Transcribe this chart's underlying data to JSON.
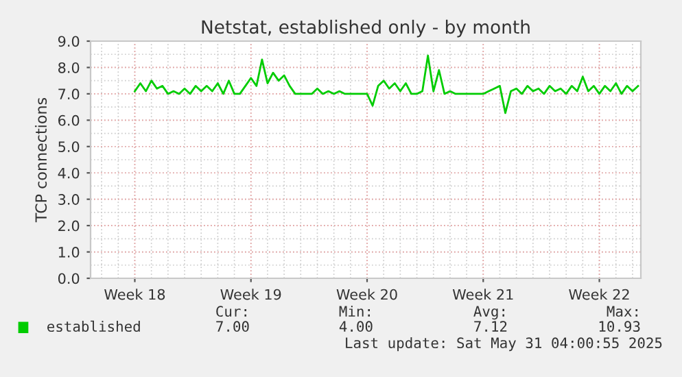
{
  "chart_data": {
    "type": "line",
    "title": "Netstat, established only - by month",
    "ylabel": "TCP connections",
    "categories": [
      null,
      null,
      null,
      null,
      null,
      null,
      null,
      null,
      "Week 18",
      null,
      null,
      null,
      null,
      null,
      null,
      null,
      null,
      null,
      null,
      null,
      null,
      null,
      null,
      null,
      null,
      null,
      null,
      null,
      null,
      "Week 19",
      null,
      null,
      null,
      null,
      null,
      null,
      null,
      null,
      null,
      null,
      null,
      null,
      null,
      null,
      null,
      null,
      null,
      null,
      null,
      null,
      "Week 20",
      null,
      null,
      null,
      null,
      null,
      null,
      null,
      null,
      null,
      null,
      null,
      null,
      null,
      null,
      null,
      null,
      null,
      null,
      null,
      null,
      "Week 21",
      null,
      null,
      null,
      null,
      null,
      null,
      null,
      null,
      null,
      null,
      null,
      null,
      null,
      null,
      null,
      null,
      null,
      null,
      null,
      null,
      "Week 22",
      null,
      null,
      null,
      null,
      null,
      null,
      null
    ],
    "ylim": [
      0,
      9
    ],
    "yticks": [
      {
        "value": 0,
        "label": "0.0"
      },
      {
        "value": 1,
        "label": "1.0"
      },
      {
        "value": 2,
        "label": "2.0"
      },
      {
        "value": 3,
        "label": "3.0"
      },
      {
        "value": 4,
        "label": "4.0"
      },
      {
        "value": 5,
        "label": "5.0"
      },
      {
        "value": 6,
        "label": "6.0"
      },
      {
        "value": 7,
        "label": "7.0"
      },
      {
        "value": 8,
        "label": "8.0"
      },
      {
        "value": 9,
        "label": "9.0"
      }
    ],
    "grid": true,
    "legend": "bottom left",
    "series": [
      {
        "name": "established",
        "color": "#00cc00",
        "values": [
          null,
          null,
          null,
          null,
          null,
          null,
          null,
          null,
          7.1,
          7.4,
          7.1,
          7.5,
          7.2,
          7.3,
          7.0,
          7.1,
          7.0,
          7.2,
          7.0,
          7.3,
          7.1,
          7.3,
          7.1,
          7.4,
          7.0,
          7.5,
          7.0,
          7.0,
          7.3,
          7.6,
          7.3,
          8.3,
          7.4,
          7.8,
          7.5,
          7.7,
          7.3,
          7.0,
          7.0,
          7.0,
          7.0,
          7.2,
          7.0,
          7.1,
          7.0,
          7.1,
          7.0,
          7.0,
          7.0,
          7.0,
          7.0,
          6.55,
          7.3,
          7.5,
          7.2,
          7.4,
          7.1,
          7.4,
          7.0,
          7.0,
          7.1,
          8.45,
          7.1,
          7.9,
          7.0,
          7.1,
          7.0,
          7.0,
          7.0,
          7.0,
          7.0,
          7.0,
          7.1,
          7.2,
          7.3,
          6.27,
          7.1,
          7.2,
          7.0,
          7.3,
          7.1,
          7.2,
          7.0,
          7.3,
          7.1,
          7.2,
          7.0,
          7.3,
          7.1,
          7.65,
          7.1,
          7.3,
          7.0,
          7.3,
          7.1,
          7.4,
          7.0,
          7.3,
          7.1,
          7.3
        ]
      }
    ],
    "annotations": [
      "Cur:",
      "Min:",
      "Avg:",
      "Max:",
      "7.00",
      "4.00",
      "7.12",
      "10.93",
      "Last update: Sat May 31 04:00:55 2025"
    ]
  }
}
